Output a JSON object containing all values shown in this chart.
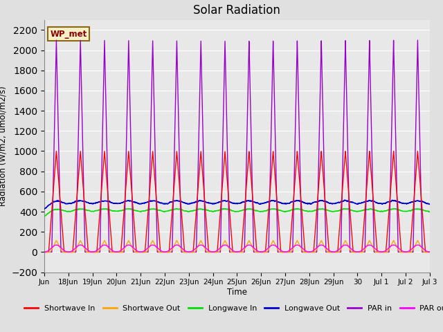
{
  "title": "Solar Radiation",
  "ylabel": "Radiation (W/m2, umol/m2/s)",
  "xlabel": "Time",
  "ylim": [
    -200,
    2300
  ],
  "yticks": [
    -200,
    0,
    200,
    400,
    600,
    800,
    1000,
    1200,
    1400,
    1600,
    1800,
    2000,
    2200
  ],
  "bg_color": "#e0e0e0",
  "plot_bg_color": "#e8e8e8",
  "annotation_text": "WP_met",
  "annotation_bg": "#f5f0c8",
  "annotation_border": "#8b6914",
  "annotation_text_color": "#8b0000",
  "colors": {
    "shortwave_in": "#ff0000",
    "shortwave_out": "#ffa500",
    "longwave_in": "#00dd00",
    "longwave_out": "#0000cc",
    "par_in": "#9900cc",
    "par_out": "#ff00ff"
  },
  "legend": [
    {
      "label": "Shortwave In",
      "color": "#ff0000"
    },
    {
      "label": "Shortwave Out",
      "color": "#ffa500"
    },
    {
      "label": "Longwave In",
      "color": "#00dd00"
    },
    {
      "label": "Longwave Out",
      "color": "#0000cc"
    },
    {
      "label": "PAR in",
      "color": "#9900cc"
    },
    {
      "label": "PAR out",
      "color": "#ff00ff"
    }
  ],
  "n_days": 16,
  "shortwave_in_peak": 1000,
  "shortwave_out_peak": 115,
  "longwave_in_base": 310,
  "longwave_in_peak": 420,
  "longwave_out_base": 370,
  "longwave_out_peak": 500,
  "par_in_peak": 2100,
  "par_out_peak": 75,
  "x_start": 0,
  "x_end": 16,
  "xtick_labels": [
    "Jun",
    "18Jun",
    "19Jun",
    "20Jun",
    "21Jun",
    "22Jun",
    "23Jun",
    "24Jun",
    "25Jun",
    "26Jun",
    "27Jun",
    "28Jun",
    "29Jun",
    "30",
    "Jul 1",
    "Jul 2",
    "Jul 3"
  ],
  "xtick_positions": [
    0,
    1,
    2,
    3,
    4,
    5,
    6,
    7,
    8,
    9,
    10,
    11,
    12,
    13,
    14,
    15,
    16
  ]
}
